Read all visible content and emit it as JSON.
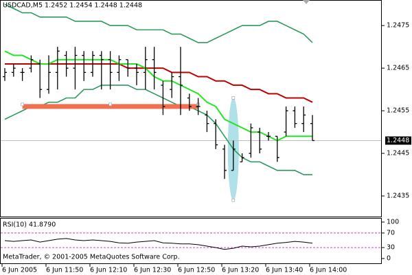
{
  "chart_data": [
    {
      "type": "ohlc",
      "title": "USDCAD,M5  1.2452 1.2454 1.2448 1.2448",
      "categories": [
        "6 Jun 2005",
        null,
        null,
        null,
        null,
        "6 Jun 11:50",
        null,
        null,
        null,
        null,
        "6 Jun 12:10",
        null,
        null,
        null,
        null,
        "6 Jun 12:30",
        null,
        null,
        null,
        null,
        "6 Jun 12:50",
        null,
        null,
        null,
        null,
        "6 Jun 13:20",
        null,
        null,
        null,
        null,
        "6 Jun 13:40",
        null,
        null,
        null,
        null,
        "6 Jun 14:00"
      ],
      "open": [
        1.2463,
        1.2464,
        1.2464,
        1.2465,
        1.2466,
        1.246,
        1.2464,
        1.2468,
        1.2465,
        1.2468,
        1.2464,
        1.2468,
        1.2467,
        1.2464,
        1.2467,
        1.2465,
        1.2464,
        1.2467,
        1.2461,
        1.246,
        1.2463,
        1.2458,
        1.2456,
        1.2454,
        1.2452,
        1.2446,
        1.2441,
        1.2443,
        1.2445,
        1.245,
        1.2449,
        1.2449,
        1.245,
        1.2455,
        1.2452,
        1.2452
      ],
      "high": [
        1.2465,
        1.2466,
        1.2465,
        1.2468,
        1.2467,
        1.2468,
        1.247,
        1.2469,
        1.247,
        1.2469,
        1.2469,
        1.2469,
        1.2469,
        1.2468,
        1.2467,
        1.2466,
        1.247,
        1.247,
        1.2462,
        1.2464,
        1.247,
        1.2459,
        1.2458,
        1.2455,
        1.2453,
        1.2447,
        1.2448,
        1.2445,
        1.2452,
        1.2451,
        1.245,
        1.2449,
        1.2456,
        1.2456,
        1.2456,
        1.2454
      ],
      "low": [
        1.2462,
        1.2463,
        1.2462,
        1.2464,
        1.2458,
        1.2459,
        1.246,
        1.2463,
        1.246,
        1.2462,
        1.2463,
        1.246,
        1.246,
        1.2462,
        1.2463,
        1.2461,
        1.246,
        1.246,
        1.2454,
        1.2458,
        1.2454,
        1.2455,
        1.2454,
        1.245,
        1.2446,
        1.2439,
        1.2441,
        1.2443,
        1.2444,
        1.2445,
        1.2448,
        1.2443,
        1.2449,
        1.2451,
        1.245,
        1.2448
      ],
      "close": [
        1.2464,
        1.2465,
        1.2464,
        1.2467,
        1.246,
        1.2464,
        1.2469,
        1.2465,
        1.2468,
        1.2464,
        1.2468,
        1.2467,
        1.2464,
        1.2467,
        1.2465,
        1.2464,
        1.2467,
        1.2464,
        1.2456,
        1.2463,
        1.2461,
        1.2456,
        1.2456,
        1.2452,
        1.2447,
        1.2441,
        1.2446,
        1.2444,
        1.2451,
        1.2446,
        1.2449,
        1.2444,
        1.2455,
        1.2452,
        1.2454,
        1.2448
      ],
      "color": "#000000",
      "series": [
        {
          "color": "#2e9a5e",
          "values": [
            1.248,
            1.2479,
            1.2478,
            1.2478,
            1.2477,
            1.2477,
            1.2477,
            1.2477,
            1.2476,
            1.2476,
            1.2476,
            1.2476,
            1.2475,
            1.2475,
            1.2475,
            1.2474,
            1.2474,
            1.2474,
            1.2474,
            1.2473,
            1.2473,
            1.2472,
            1.2471,
            1.2471,
            1.2472,
            1.2473,
            1.2474,
            1.2475,
            1.2475,
            1.2475,
            1.2476,
            1.2476,
            1.2475,
            1.2474,
            1.2473,
            1.2471
          ]
        },
        {
          "color": "#2e9a5e",
          "values": [
            1.2453,
            1.2454,
            1.2455,
            1.2456,
            1.2456,
            1.2457,
            1.2457,
            1.2458,
            1.2458,
            1.246,
            1.246,
            1.2461,
            1.2461,
            1.2461,
            1.2461,
            1.246,
            1.246,
            1.2459,
            1.2458,
            1.2457,
            1.2456,
            1.2456,
            1.2455,
            1.2454,
            1.2452,
            1.2449,
            1.2446,
            1.2444,
            1.2443,
            1.2443,
            1.2442,
            1.2441,
            1.2441,
            1.2441,
            1.244,
            1.244
          ]
        },
        {
          "color": "#c00000",
          "values": [
            1.2466,
            1.2466,
            1.2466,
            1.2466,
            1.2466,
            1.2466,
            1.2466,
            1.2466,
            1.2466,
            1.2466,
            1.2466,
            1.2466,
            1.2466,
            1.2466,
            1.2465,
            1.2465,
            1.2465,
            1.2465,
            1.2465,
            1.2464,
            1.2464,
            1.2464,
            1.2463,
            1.2463,
            1.2462,
            1.2462,
            1.2461,
            1.2461,
            1.246,
            1.246,
            1.2459,
            1.2459,
            1.2458,
            1.2458,
            1.2458,
            1.2457
          ]
        },
        {
          "color": "#22e622",
          "values": [
            1.2469,
            1.2468,
            1.2468,
            1.2467,
            1.2466,
            1.2466,
            1.2467,
            1.2467,
            1.2467,
            1.2467,
            1.2467,
            1.2467,
            1.2467,
            1.2466,
            1.2466,
            1.2466,
            1.2465,
            1.2463,
            1.2462,
            1.2462,
            1.2461,
            1.246,
            1.2459,
            1.2457,
            1.2456,
            1.2453,
            1.2452,
            1.2451,
            1.245,
            1.245,
            1.2449,
            1.2448,
            1.2449,
            1.2449,
            1.2449,
            1.2449
          ]
        }
      ],
      "trendline": {
        "price": 1.2456,
        "start_bar": 2,
        "end_bar": 22,
        "color": "#f07050"
      },
      "ellipse": {
        "bar": 26,
        "top": 1.2458,
        "bottom": 1.2434,
        "color": "#b0e0e8"
      },
      "current_price": 1.2448,
      "ylim": [
        1.243,
        1.2481
      ],
      "yticks": [
        1.2475,
        1.2465,
        1.2455,
        1.2445,
        1.2435
      ],
      "grid": false
    },
    {
      "type": "line",
      "title": "RSI(10) 41.8790",
      "values": [
        49,
        47,
        49,
        51,
        45,
        49,
        53,
        55,
        51,
        49,
        51,
        49,
        47,
        43,
        42,
        45,
        47,
        49,
        43,
        42,
        40,
        40,
        38,
        34,
        30,
        25,
        28,
        34,
        32,
        34,
        38,
        42,
        44,
        47,
        45,
        41.879
      ],
      "color": "#000000",
      "levels": [
        70,
        30
      ],
      "level_color": "#d040d0",
      "ylim": [
        0,
        100
      ],
      "yticks": [
        100,
        70,
        30,
        0
      ]
    }
  ],
  "footer": "MetaTrader, © 2001-2005 MetaQuotes Software Corp."
}
